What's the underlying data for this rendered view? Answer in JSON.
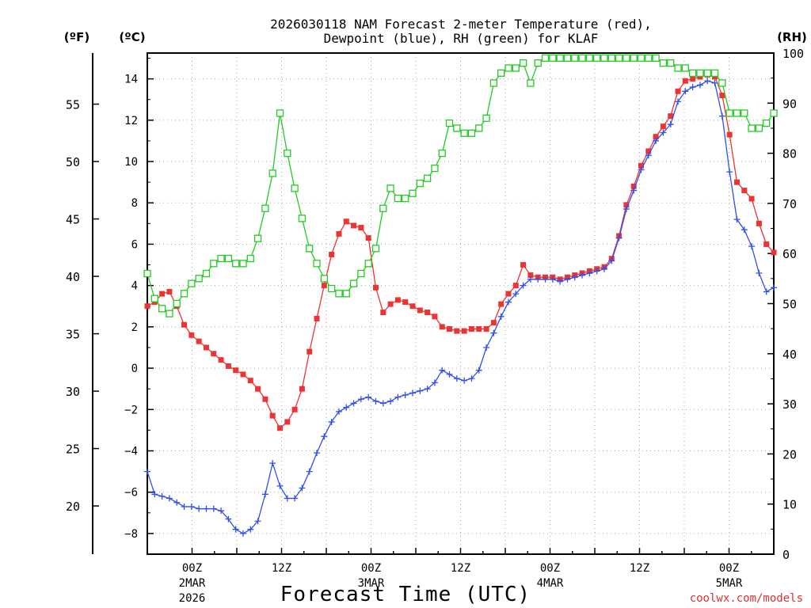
{
  "chart_data": {
    "type": "line",
    "title_line1": "2026030118 NAM Forecast 2-meter Temperature (red),",
    "title_line2": "Dewpoint (blue), RH (green) for KLAF",
    "unit_left_f": "(ºF)",
    "unit_left_c": "(ºC)",
    "unit_right": "(RH)",
    "xlabel": "Forecast Time (UTC)",
    "credit": "coolwx.com/models",
    "x_range_hours": [
      -6,
      78
    ],
    "ylim_c": [
      -9,
      15.25
    ],
    "ylim_rh": [
      0,
      100
    ],
    "ylim_f": [
      15.8,
      59.45
    ],
    "y_ticks_c": [
      -8,
      -6,
      -4,
      -2,
      0,
      2,
      4,
      6,
      8,
      10,
      12,
      14
    ],
    "y_ticks_f": [
      20,
      25,
      30,
      35,
      40,
      45,
      50,
      55
    ],
    "y_ticks_rh": [
      0,
      10,
      20,
      30,
      40,
      50,
      60,
      70,
      80,
      90,
      100
    ],
    "x_ticks": [
      {
        "h": 0,
        "label": "00Z",
        "sub1": "2MAR",
        "sub2": "2026"
      },
      {
        "h": 12,
        "label": "12Z",
        "sub1": "",
        "sub2": ""
      },
      {
        "h": 24,
        "label": "00Z",
        "sub1": "3MAR",
        "sub2": ""
      },
      {
        "h": 36,
        "label": "12Z",
        "sub1": "",
        "sub2": ""
      },
      {
        "h": 48,
        "label": "00Z",
        "sub1": "4MAR",
        "sub2": ""
      },
      {
        "h": 60,
        "label": "12Z",
        "sub1": "",
        "sub2": ""
      },
      {
        "h": 72,
        "label": "00Z",
        "sub1": "5MAR",
        "sub2": ""
      }
    ],
    "series": [
      {
        "name": "Temperature",
        "unit": "C",
        "color": "#ee3333",
        "marker": "filled-square",
        "values": [
          3.0,
          3.2,
          3.6,
          3.7,
          3.0,
          2.1,
          1.6,
          1.3,
          1.0,
          0.7,
          0.4,
          0.1,
          -0.1,
          -0.3,
          -0.6,
          -1.0,
          -1.5,
          -2.3,
          -2.9,
          -2.6,
          -2.0,
          -1.0,
          0.8,
          2.4,
          4.0,
          5.5,
          6.5,
          7.1,
          6.9,
          6.8,
          6.3,
          3.9,
          2.7,
          3.1,
          3.3,
          3.2,
          3.0,
          2.8,
          2.7,
          2.5,
          2.0,
          1.9,
          1.8,
          1.8,
          1.9,
          1.9,
          1.9,
          2.2,
          3.1,
          3.6,
          4.0,
          5.0,
          4.5,
          4.4,
          4.4,
          4.4,
          4.3,
          4.4,
          4.5,
          4.6,
          4.7,
          4.8,
          4.9,
          5.3,
          6.4,
          7.9,
          8.8,
          9.8,
          10.5,
          11.2,
          11.7,
          12.2,
          13.4,
          13.9,
          14.0,
          14.1,
          14.2,
          14.1,
          13.2,
          11.3,
          9.0,
          8.6,
          8.2,
          7.0,
          6.0,
          5.6
        ]
      },
      {
        "name": "Dewpoint",
        "unit": "C",
        "color": "#3050ee",
        "marker": "plus",
        "values": [
          -5.0,
          -6.1,
          -6.2,
          -6.3,
          -6.5,
          -6.7,
          -6.7,
          -6.8,
          -6.8,
          -6.8,
          -6.9,
          -7.3,
          -7.8,
          -8.0,
          -7.8,
          -7.4,
          -6.1,
          -4.6,
          -5.7,
          -6.3,
          -6.3,
          -5.8,
          -5.0,
          -4.1,
          -3.3,
          -2.6,
          -2.1,
          -1.9,
          -1.7,
          -1.5,
          -1.4,
          -1.6,
          -1.7,
          -1.6,
          -1.4,
          -1.3,
          -1.2,
          -1.1,
          -1.0,
          -0.7,
          -0.1,
          -0.3,
          -0.5,
          -0.6,
          -0.5,
          -0.1,
          1.0,
          1.7,
          2.5,
          3.2,
          3.6,
          4.0,
          4.3,
          4.3,
          4.3,
          4.3,
          4.2,
          4.3,
          4.4,
          4.5,
          4.6,
          4.7,
          4.8,
          5.2,
          6.3,
          7.7,
          8.6,
          9.6,
          10.3,
          11.0,
          11.4,
          11.8,
          12.9,
          13.4,
          13.6,
          13.7,
          13.9,
          13.8,
          12.2,
          9.5,
          7.2,
          6.7,
          5.9,
          4.6,
          3.7,
          3.9
        ]
      },
      {
        "name": "RH",
        "unit": "%",
        "color": "#22cc22",
        "marker": "open-square",
        "values": [
          56,
          51,
          49,
          48,
          50,
          52,
          54,
          55,
          56,
          58,
          59,
          59,
          58,
          58,
          59,
          63,
          69,
          76,
          88,
          80,
          73,
          67,
          61,
          58,
          55,
          53,
          52,
          52,
          54,
          56,
          58,
          61,
          69,
          73,
          71,
          71,
          72,
          74,
          75,
          77,
          80,
          86,
          85,
          84,
          84,
          85,
          87,
          94,
          96,
          97,
          97,
          98,
          94,
          98,
          99,
          99,
          99,
          99,
          99,
          99,
          99,
          99,
          99,
          99,
          99,
          99,
          99,
          99,
          99,
          99,
          98,
          98,
          97,
          97,
          96,
          96,
          96,
          96,
          94,
          88,
          88,
          88,
          85,
          85,
          86,
          88
        ]
      }
    ]
  }
}
